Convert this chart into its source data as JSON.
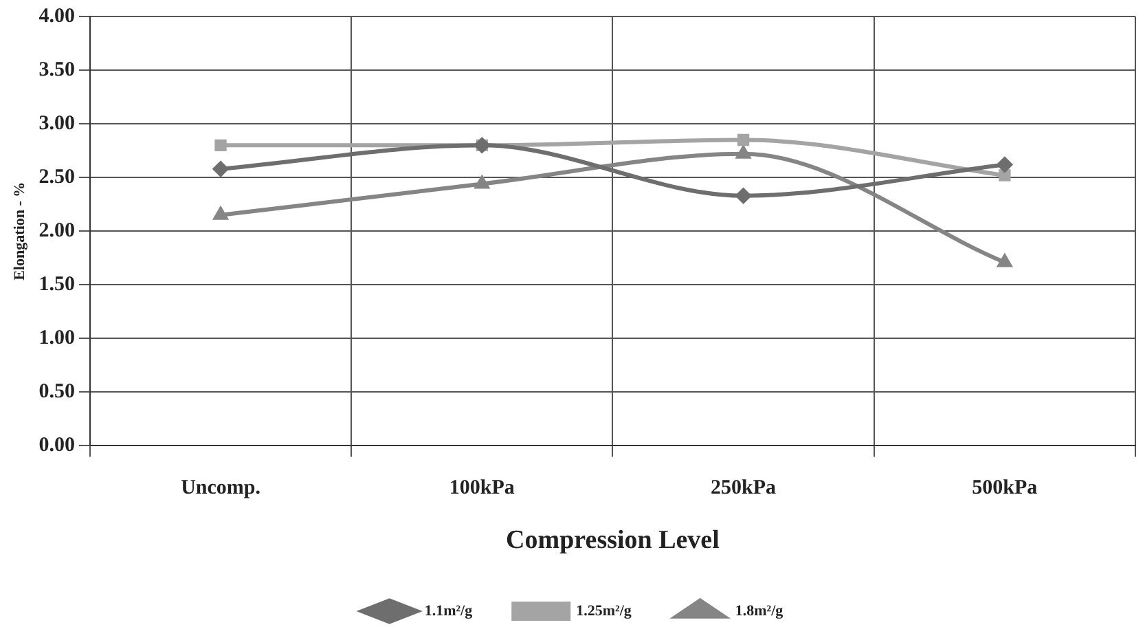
{
  "chart_data": {
    "type": "line",
    "xlabel": "Compression Level",
    "ylabel": "Elongation - %",
    "categories": [
      "Uncomp.",
      "100kPa",
      "250kPa",
      "500kPa"
    ],
    "series": [
      {
        "name": "1.1m²/g",
        "color": "#6e6e6e",
        "marker": "diamond",
        "values": [
          2.58,
          2.8,
          2.33,
          2.62
        ]
      },
      {
        "name": "1.25m²/g",
        "color": "#a4a4a4",
        "marker": "square",
        "values": [
          2.8,
          2.8,
          2.85,
          2.52
        ]
      },
      {
        "name": "1.8m²/g",
        "color": "#858585",
        "marker": "triangle",
        "values": [
          2.15,
          2.44,
          2.72,
          1.71
        ]
      }
    ],
    "ylim": [
      0,
      4
    ],
    "yticks": [
      {
        "value": 0,
        "label": "0.00"
      },
      {
        "value": 0.5,
        "label": "0.50"
      },
      {
        "value": 1,
        "label": "1.00"
      },
      {
        "value": 1.5,
        "label": "1.50"
      },
      {
        "value": 2,
        "label": "2.00"
      },
      {
        "value": 2.5,
        "label": "2.50"
      },
      {
        "value": 3,
        "label": "3.00"
      },
      {
        "value": 3.5,
        "label": "3.50"
      },
      {
        "value": 4,
        "label": "4.00"
      }
    ],
    "grid": true,
    "legend": "bottom",
    "line_style": "solid"
  }
}
